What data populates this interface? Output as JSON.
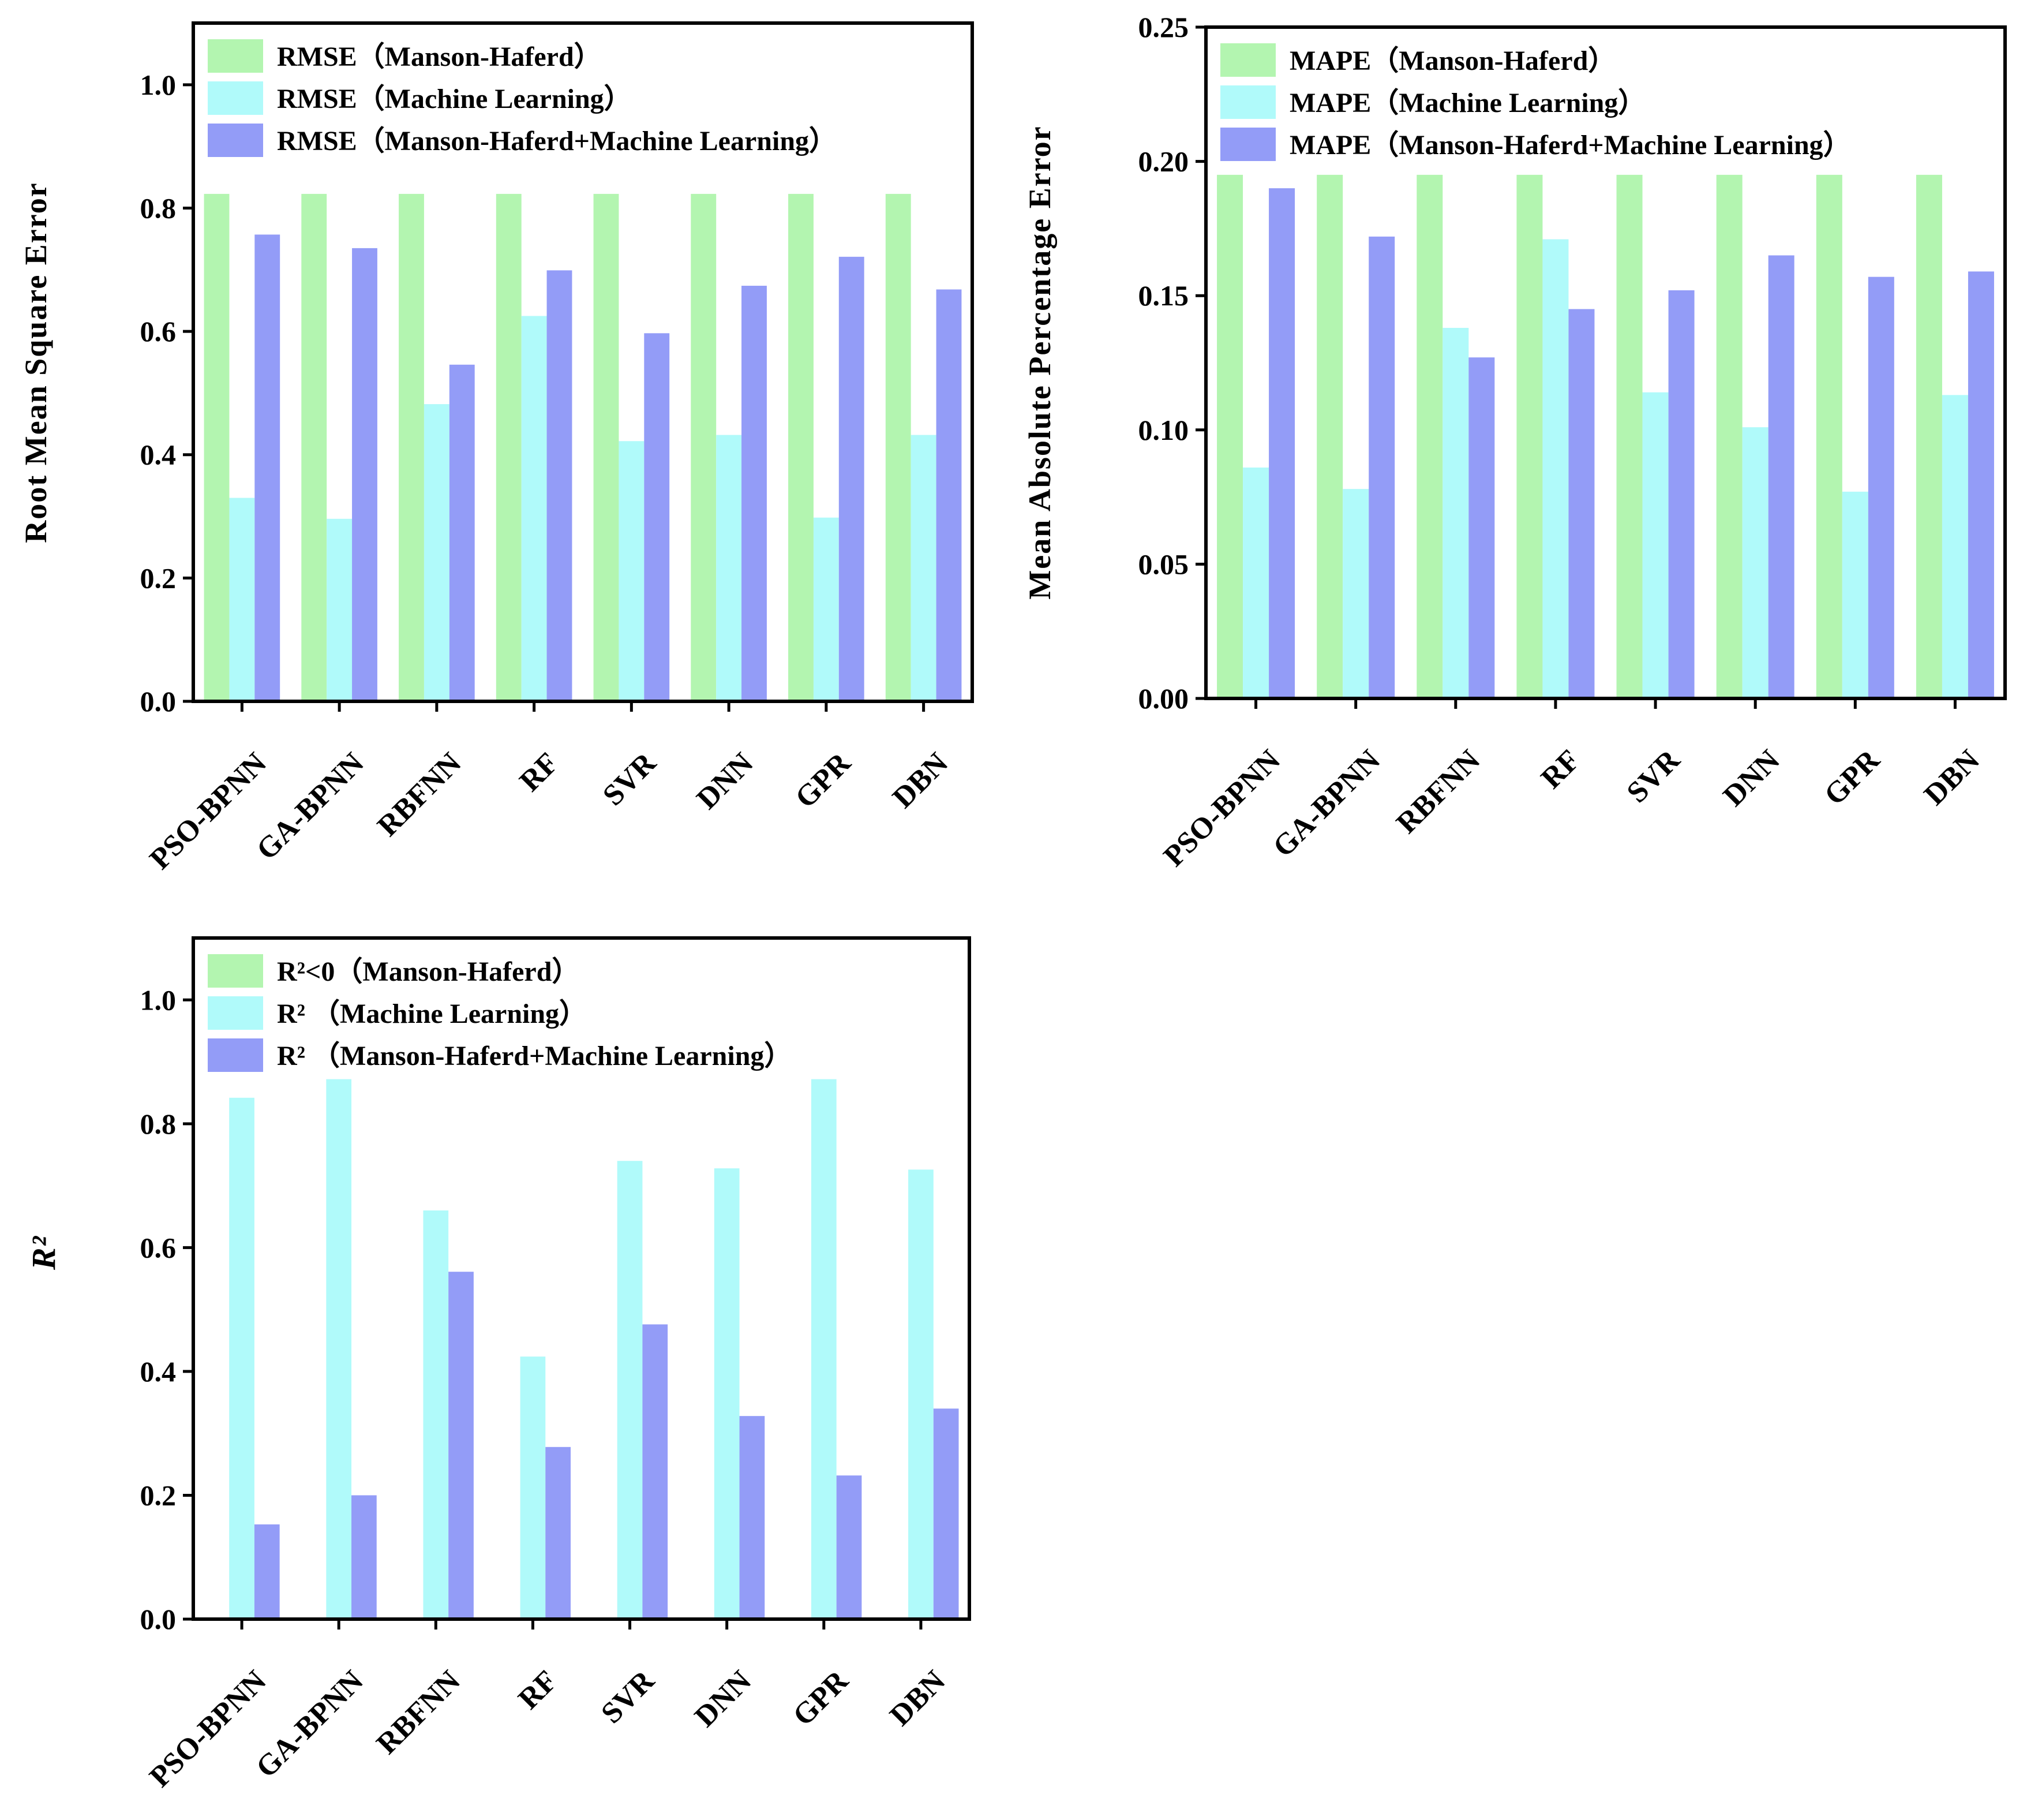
{
  "colors": {
    "manson": "#b3f5b0",
    "ml": "#b0fafa",
    "combined": "#939cf7",
    "axis": "#000000"
  },
  "chart_data": [
    {
      "type": "bar",
      "id": "rmse",
      "title": "",
      "ylabel": "Root Mean Square Error",
      "xlabel": "",
      "ylim": [
        0,
        1.1
      ],
      "yticks": [
        "0.0",
        "0.2",
        "0.4",
        "0.6",
        "0.8",
        "1.0"
      ],
      "ytick_values": [
        0,
        0.2,
        0.4,
        0.6,
        0.8,
        1.0
      ],
      "categories": [
        "PSO-BPNN",
        "GA-BPNN",
        "RBFNN",
        "RF",
        "SVR",
        "DNN",
        "GPR",
        "DBN"
      ],
      "legend_position": "top-left",
      "series": [
        {
          "name": "RMSE（Manson-Haferd）",
          "color_key": "manson",
          "values": [
            0.823,
            0.823,
            0.823,
            0.823,
            0.823,
            0.823,
            0.823,
            0.823
          ]
        },
        {
          "name": "RMSE（Machine Learning）",
          "color_key": "ml",
          "values": [
            0.33,
            0.296,
            0.482,
            0.625,
            0.422,
            0.432,
            0.298,
            0.432
          ]
        },
        {
          "name": "RMSE（Manson-Haferd+Machine Learning）",
          "color_key": "combined",
          "values": [
            0.757,
            0.735,
            0.546,
            0.699,
            0.597,
            0.674,
            0.721,
            0.668
          ]
        }
      ]
    },
    {
      "type": "bar",
      "id": "mape",
      "title": "",
      "ylabel": "Mean Absolute Percentage Error",
      "xlabel": "",
      "ylim": [
        0,
        0.25
      ],
      "yticks": [
        "0.00",
        "0.05",
        "0.10",
        "0.15",
        "0.20",
        "0.25"
      ],
      "ytick_values": [
        0,
        0.05,
        0.1,
        0.15,
        0.2,
        0.25
      ],
      "categories": [
        "PSO-BPNN",
        "GA-BPNN",
        "RBFNN",
        "RF",
        "SVR",
        "DNN",
        "GPR",
        "DBN"
      ],
      "legend_position": "top-left",
      "series": [
        {
          "name": "MAPE（Manson-Haferd）",
          "color_key": "manson",
          "values": [
            0.195,
            0.195,
            0.195,
            0.195,
            0.195,
            0.195,
            0.195,
            0.195
          ]
        },
        {
          "name": "MAPE（Machine Learning）",
          "color_key": "ml",
          "values": [
            0.086,
            0.078,
            0.138,
            0.171,
            0.114,
            0.101,
            0.077,
            0.113
          ]
        },
        {
          "name": "MAPE（Manson-Haferd+Machine Learning）",
          "color_key": "combined",
          "values": [
            0.19,
            0.172,
            0.127,
            0.145,
            0.152,
            0.165,
            0.157,
            0.159
          ]
        }
      ]
    },
    {
      "type": "bar",
      "id": "r2",
      "title": "",
      "ylabel": "R²",
      "xlabel": "",
      "ylim": [
        0,
        1.1
      ],
      "yticks": [
        "0.0",
        "0.2",
        "0.4",
        "0.6",
        "0.8",
        "1.0"
      ],
      "ytick_values": [
        0,
        0.2,
        0.4,
        0.6,
        0.8,
        1.0
      ],
      "categories": [
        "PSO-BPNN",
        "GA-BPNN",
        "RBFNN",
        "RF",
        "SVR",
        "DNN",
        "GPR",
        "DBN"
      ],
      "legend_position": "top-left",
      "series": [
        {
          "name": "R²<0（Manson-Haferd）",
          "color_key": "manson",
          "values": [
            0,
            0,
            0,
            0,
            0,
            0,
            0,
            0
          ]
        },
        {
          "name": "R²  （Machine Learning）",
          "color_key": "ml",
          "values": [
            0.842,
            0.872,
            0.66,
            0.424,
            0.74,
            0.728,
            0.872,
            0.726
          ]
        },
        {
          "name": "R²  （Manson-Haferd+Machine Learning）",
          "color_key": "combined",
          "values": [
            0.153,
            0.2,
            0.561,
            0.278,
            0.476,
            0.328,
            0.232,
            0.34
          ]
        }
      ]
    }
  ]
}
